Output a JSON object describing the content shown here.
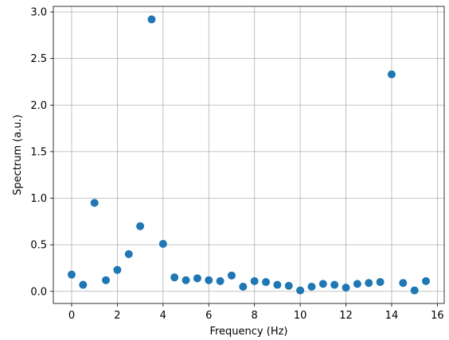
{
  "chart_data": {
    "type": "scatter",
    "title": "",
    "xlabel": "Frequency (Hz)",
    "ylabel": "Spectrum (a.u.)",
    "xlim": [
      -0.8,
      16.3
    ],
    "ylim": [
      -0.13,
      3.06
    ],
    "xticks": [
      0,
      2,
      4,
      6,
      8,
      10,
      12,
      14,
      16
    ],
    "xtick_labels": [
      "0",
      "2",
      "4",
      "6",
      "8",
      "10",
      "12",
      "14",
      "16"
    ],
    "yticks": [
      0.0,
      0.5,
      1.0,
      1.5,
      2.0,
      2.5,
      3.0
    ],
    "ytick_labels": [
      "0.0",
      "0.5",
      "1.0",
      "1.5",
      "2.0",
      "2.5",
      "3.0"
    ],
    "grid": true,
    "marker_color": "#1f77b4",
    "x": [
      0,
      0.5,
      1,
      1.5,
      2,
      2.5,
      3,
      3.5,
      4,
      4.5,
      5,
      5.5,
      6,
      6.5,
      7,
      7.5,
      8,
      8.5,
      9,
      9.5,
      10,
      10.5,
      11,
      11.5,
      12,
      12.5,
      13,
      13.5,
      14,
      14.5,
      15,
      15.5
    ],
    "y": [
      0.18,
      0.07,
      0.95,
      0.12,
      0.23,
      0.4,
      0.7,
      2.92,
      0.51,
      0.15,
      0.12,
      0.14,
      0.12,
      0.11,
      0.17,
      0.05,
      0.11,
      0.1,
      0.07,
      0.06,
      0.01,
      0.05,
      0.08,
      0.07,
      0.04,
      0.08,
      0.09,
      0.1,
      2.33,
      0.09,
      0.01,
      0.11
    ]
  }
}
